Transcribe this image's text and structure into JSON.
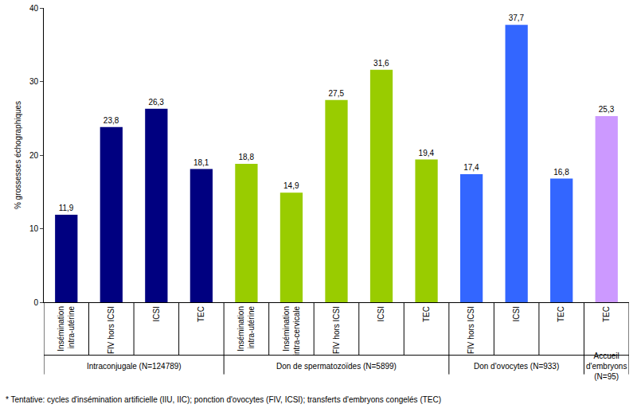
{
  "chart_data": {
    "type": "bar",
    "y_label": "% grossesses échographiques",
    "categories": [
      "Insémination\nintra-utérine",
      "FIV hors ICSI",
      "ICSI",
      "TEC",
      "Insémination\nintra-utérine",
      "Insémination\nintra-cervicale",
      "FIV hors ICSI",
      "ICSI",
      "TEC",
      "FIV hors ICSI",
      "ICSI",
      "TEC",
      "TEC"
    ],
    "groups": [
      "Intraconjugale (N=124789)",
      "Intraconjugale (N=124789)",
      "Intraconjugale (N=124789)",
      "Intraconjugale (N=124789)",
      "Don de spermatozoïdes (N=5899)",
      "Don de spermatozoïdes (N=5899)",
      "Don de spermatozoïdes (N=5899)",
      "Don de spermatozoïdes (N=5899)",
      "Don de spermatozoïdes (N=5899)",
      "Don d'ovocytes (N=933)",
      "Don d'ovocytes (N=933)",
      "Don d'ovocytes (N=933)",
      "Accueil\nd'embryons\n(N=95)"
    ],
    "values": [
      11.9,
      23.8,
      26.3,
      18.1,
      18.8,
      14.9,
      27.5,
      31.6,
      19.4,
      17.4,
      37.7,
      16.8,
      25.3
    ],
    "value_labels": [
      "11,9",
      "23,8",
      "26,3",
      "18,1",
      "18,8",
      "14,9",
      "27,5",
      "31,6",
      "19,4",
      "17,4",
      "37,7",
      "16,8",
      "25,3"
    ],
    "colors": [
      "#000080",
      "#000080",
      "#000080",
      "#000080",
      "#99CC00",
      "#99CC00",
      "#99CC00",
      "#99CC00",
      "#99CC00",
      "#3366FF",
      "#3366FF",
      "#3366FF",
      "#CC99FF"
    ],
    "ylim": [
      0,
      40
    ],
    "yticks": [
      0,
      10,
      20,
      30,
      40
    ],
    "grid": false,
    "data_labels": true,
    "footnote": "* Tentative: cycles d'insémination artificielle (IIU, IIC); ponction d'ovocytes (FIV, ICSI); transferts d'embryons congelés (TEC)"
  }
}
